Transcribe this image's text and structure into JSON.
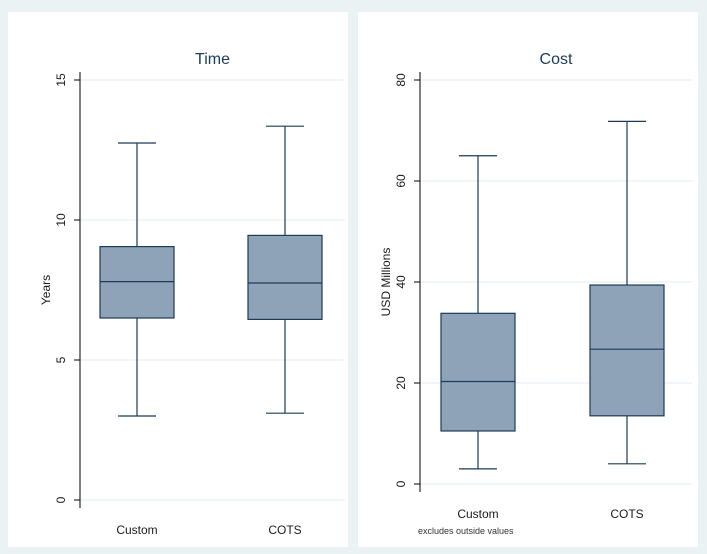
{
  "chart_data": [
    {
      "type": "box",
      "title": "Time",
      "xlabel": "",
      "ylabel": "Years",
      "ylim": [
        0,
        15
      ],
      "yticks": [
        0,
        5,
        10,
        15
      ],
      "grid": true,
      "categories": [
        "Custom",
        "COTS"
      ],
      "boxes": [
        {
          "category": "Custom",
          "whisker_low": 3.0,
          "q1": 6.5,
          "median": 7.8,
          "q3": 9.05,
          "whisker_high": 12.75
        },
        {
          "category": "COTS",
          "whisker_low": 3.1,
          "q1": 6.45,
          "median": 7.75,
          "q3": 9.45,
          "whisker_high": 13.35
        }
      ],
      "note": ""
    },
    {
      "type": "box",
      "title": "Cost",
      "xlabel": "",
      "ylabel": "USD Millions",
      "ylim": [
        0,
        80
      ],
      "yticks": [
        0,
        20,
        40,
        60,
        80
      ],
      "grid": true,
      "categories": [
        "Custom",
        "COTS"
      ],
      "boxes": [
        {
          "category": "Custom",
          "whisker_low": 3.0,
          "q1": 10.5,
          "median": 20.3,
          "q3": 33.8,
          "whisker_high": 65.0
        },
        {
          "category": "COTS",
          "whisker_low": 4.0,
          "q1": 13.5,
          "median": 26.7,
          "q3": 39.4,
          "whisker_high": 71.8
        }
      ],
      "note": "excludes outside values"
    }
  ],
  "colors": {
    "outer_bg": "#eaf2f3",
    "plot_bg": "#ffffff",
    "box_fill": "#8fa3b8",
    "box_stroke": "#1c3b57",
    "grid": "#e6edf0",
    "title": "#1c3b57",
    "axis": "#000000"
  }
}
